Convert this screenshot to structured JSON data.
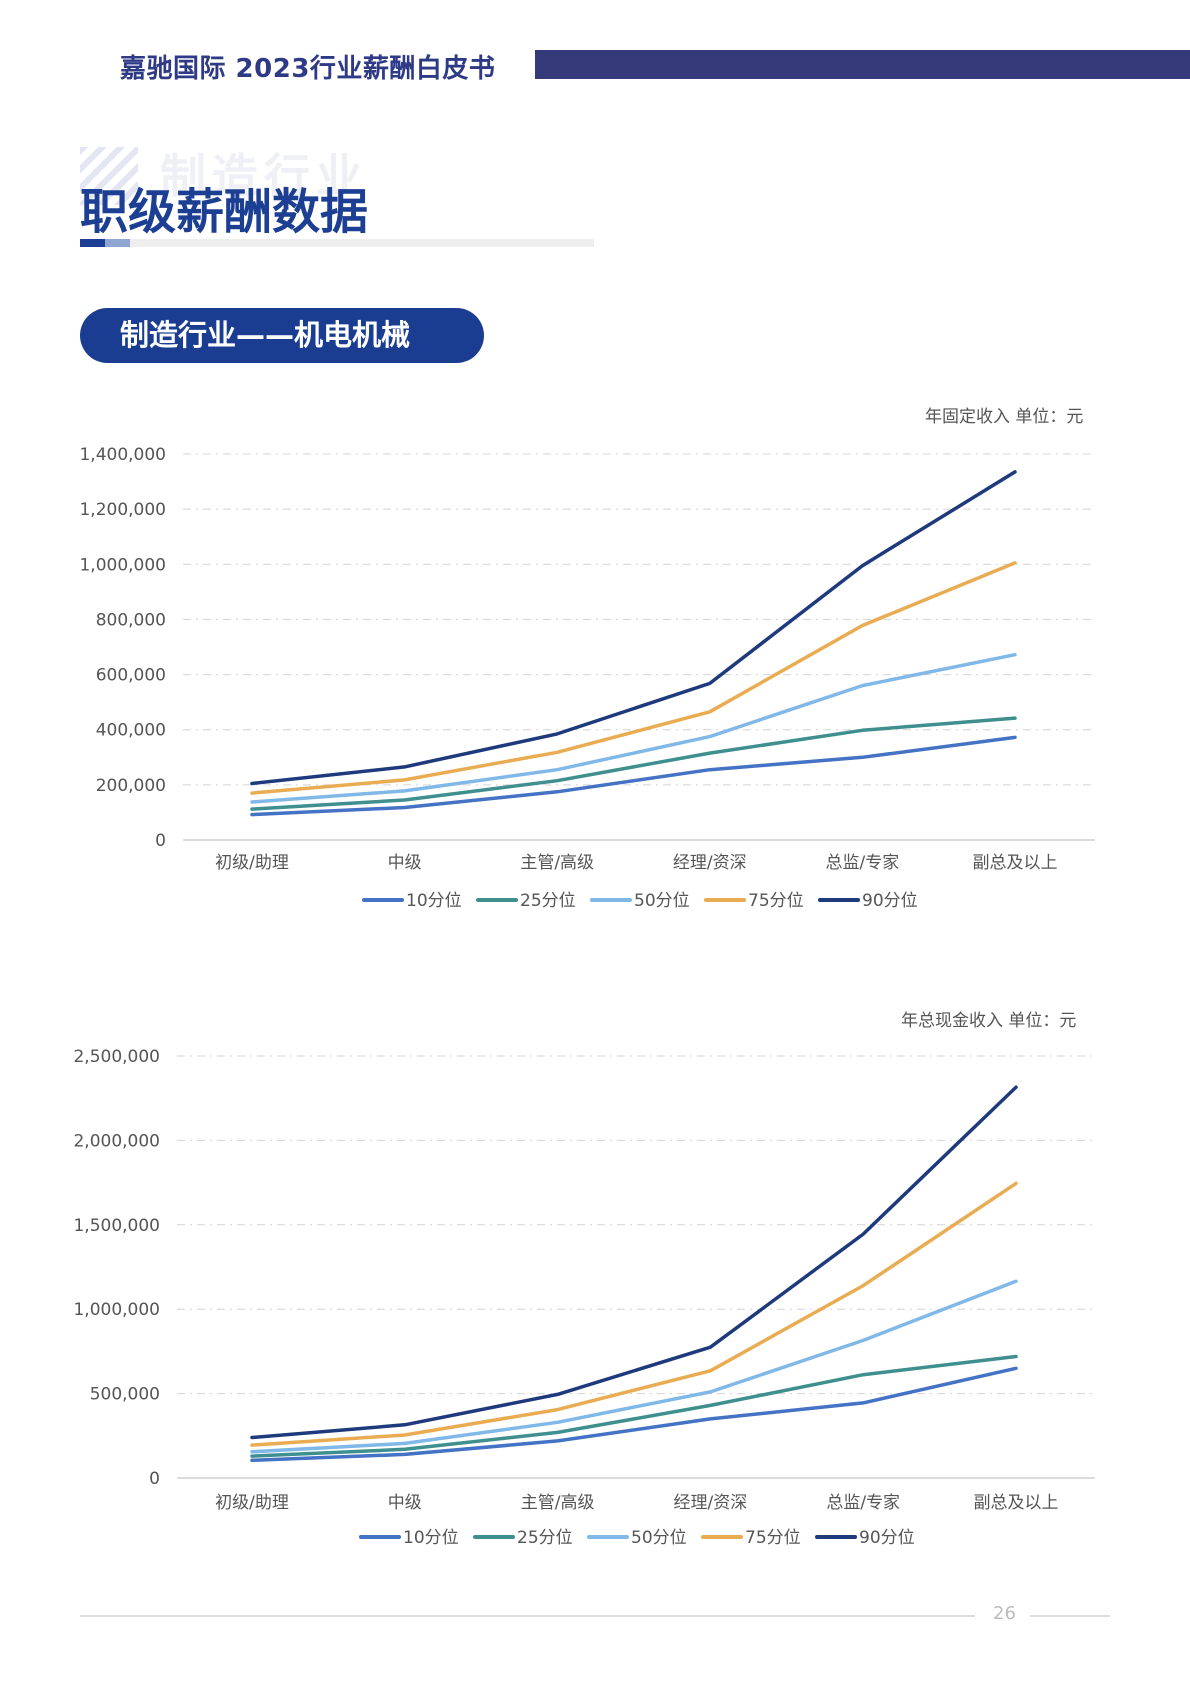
{
  "header": {
    "title": "嘉驰国际   2023行业薪酬白皮书"
  },
  "section": {
    "watermark": "制造行业",
    "title": "职级薪酬数据"
  },
  "pill": {
    "label": "制造行业——机电机械"
  },
  "colors": {
    "p10": "#4472c4",
    "p25": "#3f8f8f",
    "p50": "#80b8e8",
    "p75": "#e9ac52",
    "p90": "#1e3a7c",
    "accent": "#1b3d91"
  },
  "chart_data": [
    {
      "type": "line",
      "unit_label": "年固定收入    单位：元",
      "categories": [
        "初级/助理",
        "中级",
        "主管/高级",
        "经理/资深",
        "总监/专家",
        "副总及以上"
      ],
      "ylim": [
        0,
        1400000
      ],
      "yticks": [
        0,
        200000,
        400000,
        600000,
        800000,
        1000000,
        1200000,
        1400000
      ],
      "ytick_labels": [
        "0",
        "200,000",
        "400,000",
        "600,000",
        "800,000",
        "1,000,000",
        "1,200,000",
        "1,400,000"
      ],
      "grid": true,
      "legend": "bottom-center",
      "series": [
        {
          "name": "10分位",
          "color_key": "p10",
          "values": [
            92000,
            118000,
            175000,
            255000,
            300000,
            372000
          ]
        },
        {
          "name": "25分位",
          "color_key": "p25",
          "values": [
            112000,
            145000,
            215000,
            315000,
            398000,
            442000
          ]
        },
        {
          "name": "50分位",
          "color_key": "p50",
          "values": [
            138000,
            178000,
            255000,
            375000,
            560000,
            672000
          ]
        },
        {
          "name": "75分位",
          "color_key": "p75",
          "values": [
            170000,
            218000,
            318000,
            465000,
            778000,
            1005000
          ]
        },
        {
          "name": "90分位",
          "color_key": "p90",
          "values": [
            205000,
            265000,
            385000,
            568000,
            995000,
            1335000
          ]
        }
      ]
    },
    {
      "type": "line",
      "unit_label": "年总现金收入    单位：元",
      "categories": [
        "初级/助理",
        "中级",
        "主管/高级",
        "经理/资深",
        "总监/专家",
        "副总及以上"
      ],
      "ylim": [
        0,
        2500000
      ],
      "yticks": [
        0,
        500000,
        1000000,
        1500000,
        2000000,
        2500000
      ],
      "ytick_labels": [
        "0",
        "500,000",
        "1,000,000",
        "1,500,000",
        "2,000,000",
        "2,500,000"
      ],
      "grid": true,
      "legend": "bottom-center",
      "series": [
        {
          "name": "10分位",
          "color_key": "p10",
          "values": [
            105000,
            140000,
            220000,
            350000,
            445000,
            650000
          ]
        },
        {
          "name": "25分位",
          "color_key": "p25",
          "values": [
            130000,
            170000,
            270000,
            430000,
            612000,
            720000
          ]
        },
        {
          "name": "50分位",
          "color_key": "p50",
          "values": [
            155000,
            205000,
            330000,
            510000,
            815000,
            1165000
          ]
        },
        {
          "name": "75分位",
          "color_key": "p75",
          "values": [
            195000,
            255000,
            405000,
            635000,
            1140000,
            1745000
          ]
        },
        {
          "name": "90分位",
          "color_key": "p90",
          "values": [
            240000,
            315000,
            495000,
            775000,
            1445000,
            2315000
          ]
        }
      ]
    }
  ],
  "footer": {
    "page_number": "26"
  }
}
